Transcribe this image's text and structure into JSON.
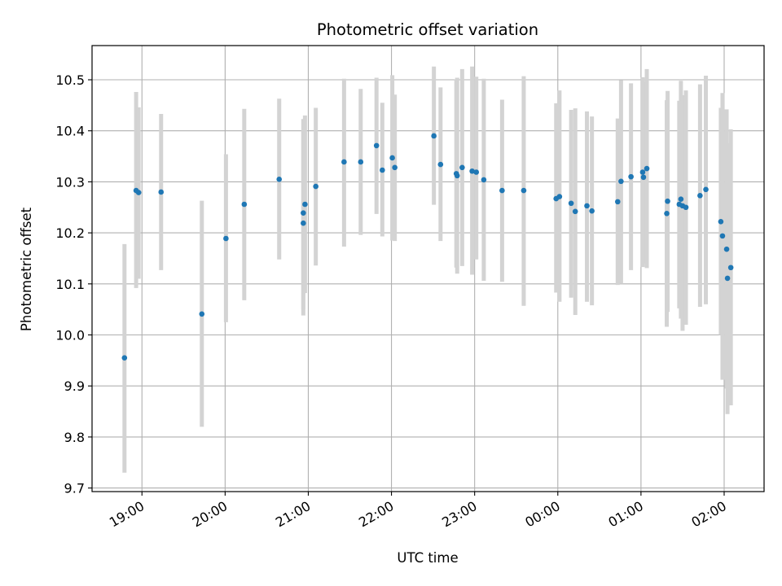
{
  "chart_data": {
    "type": "scatter",
    "title": "Photometric offset variation",
    "xlabel": "UTC time",
    "ylabel": "Photometric offset",
    "x_unit": "hours since 00:00 UTC (negative = previous day)",
    "xlim": [
      -5.6,
      2.48
    ],
    "ylim": [
      9.693,
      10.567
    ],
    "grid": true,
    "x_ticks": [
      {
        "value": -5,
        "label": "19:00"
      },
      {
        "value": -4,
        "label": "20:00"
      },
      {
        "value": -3,
        "label": "21:00"
      },
      {
        "value": -2,
        "label": "22:00"
      },
      {
        "value": -1,
        "label": "23:00"
      },
      {
        "value": 0,
        "label": "00:00"
      },
      {
        "value": 1,
        "label": "01:00"
      },
      {
        "value": 2,
        "label": "02:00"
      }
    ],
    "y_ticks": [
      {
        "value": 9.7,
        "label": "9.7"
      },
      {
        "value": 9.8,
        "label": "9.8"
      },
      {
        "value": 9.9,
        "label": "9.9"
      },
      {
        "value": 10.0,
        "label": "10.0"
      },
      {
        "value": 10.1,
        "label": "10.1"
      },
      {
        "value": 10.2,
        "label": "10.2"
      },
      {
        "value": 10.3,
        "label": "10.3"
      },
      {
        "value": 10.4,
        "label": "10.4"
      },
      {
        "value": 10.5,
        "label": "10.5"
      }
    ],
    "colors": {
      "points": "#1f77b4",
      "errorbars": "#d3d3d3",
      "grid": "#b0b0b0"
    },
    "points": [
      {
        "x": -5.21,
        "y": 9.955,
        "lo": 9.73,
        "hi": 10.178
      },
      {
        "x": -5.07,
        "y": 10.283,
        "lo": 10.092,
        "hi": 10.476
      },
      {
        "x": -5.04,
        "y": 10.279,
        "lo": 10.11,
        "hi": 10.446
      },
      {
        "x": -4.77,
        "y": 10.28,
        "lo": 10.127,
        "hi": 10.433
      },
      {
        "x": -4.28,
        "y": 10.041,
        "lo": 9.82,
        "hi": 10.263
      },
      {
        "x": -3.99,
        "y": 10.189,
        "lo": 10.025,
        "hi": 10.354
      },
      {
        "x": -3.77,
        "y": 10.256,
        "lo": 10.068,
        "hi": 10.443
      },
      {
        "x": -3.35,
        "y": 10.305,
        "lo": 10.148,
        "hi": 10.463
      },
      {
        "x": -3.06,
        "y": 10.239,
        "lo": 10.05,
        "hi": 10.423
      },
      {
        "x": -3.06,
        "y": 10.219,
        "lo": 10.038,
        "hi": 10.4
      },
      {
        "x": -3.04,
        "y": 10.256,
        "lo": 10.082,
        "hi": 10.43
      },
      {
        "x": -2.91,
        "y": 10.291,
        "lo": 10.136,
        "hi": 10.445
      },
      {
        "x": -2.57,
        "y": 10.339,
        "lo": 10.173,
        "hi": 10.502
      },
      {
        "x": -2.37,
        "y": 10.339,
        "lo": 10.196,
        "hi": 10.482
      },
      {
        "x": -2.18,
        "y": 10.371,
        "lo": 10.237,
        "hi": 10.504
      },
      {
        "x": -2.11,
        "y": 10.323,
        "lo": 10.193,
        "hi": 10.455
      },
      {
        "x": -1.99,
        "y": 10.347,
        "lo": 10.185,
        "hi": 10.509
      },
      {
        "x": -1.96,
        "y": 10.328,
        "lo": 10.184,
        "hi": 10.471
      },
      {
        "x": -1.49,
        "y": 10.39,
        "lo": 10.255,
        "hi": 10.526
      },
      {
        "x": -1.41,
        "y": 10.334,
        "lo": 10.184,
        "hi": 10.485
      },
      {
        "x": -1.22,
        "y": 10.316,
        "lo": 10.132,
        "hi": 10.501
      },
      {
        "x": -1.21,
        "y": 10.312,
        "lo": 10.12,
        "hi": 10.504
      },
      {
        "x": -1.15,
        "y": 10.328,
        "lo": 10.135,
        "hi": 10.521
      },
      {
        "x": -1.03,
        "y": 10.321,
        "lo": 10.118,
        "hi": 10.526
      },
      {
        "x": -0.98,
        "y": 10.319,
        "lo": 10.148,
        "hi": 10.506
      },
      {
        "x": -0.89,
        "y": 10.304,
        "lo": 10.106,
        "hi": 10.502
      },
      {
        "x": -0.67,
        "y": 10.283,
        "lo": 10.104,
        "hi": 10.461
      },
      {
        "x": -0.41,
        "y": 10.283,
        "lo": 10.057,
        "hi": 10.507
      },
      {
        "x": -0.02,
        "y": 10.267,
        "lo": 10.083,
        "hi": 10.454
      },
      {
        "x": 0.02,
        "y": 10.271,
        "lo": 10.065,
        "hi": 10.479
      },
      {
        "x": 0.16,
        "y": 10.258,
        "lo": 10.073,
        "hi": 10.441
      },
      {
        "x": 0.21,
        "y": 10.242,
        "lo": 10.039,
        "hi": 10.444
      },
      {
        "x": 0.35,
        "y": 10.253,
        "lo": 10.065,
        "hi": 10.438
      },
      {
        "x": 0.41,
        "y": 10.243,
        "lo": 10.058,
        "hi": 10.428
      },
      {
        "x": 0.72,
        "y": 10.261,
        "lo": 10.098,
        "hi": 10.424
      },
      {
        "x": 0.76,
        "y": 10.301,
        "lo": 10.1,
        "hi": 10.499
      },
      {
        "x": 0.88,
        "y": 10.31,
        "lo": 10.127,
        "hi": 10.493
      },
      {
        "x": 1.02,
        "y": 10.319,
        "lo": 10.133,
        "hi": 10.505
      },
      {
        "x": 1.03,
        "y": 10.309,
        "lo": 10.14,
        "hi": 10.496
      },
      {
        "x": 1.07,
        "y": 10.326,
        "lo": 10.131,
        "hi": 10.521
      },
      {
        "x": 1.31,
        "y": 10.238,
        "lo": 10.016,
        "hi": 10.46
      },
      {
        "x": 1.32,
        "y": 10.262,
        "lo": 10.045,
        "hi": 10.478
      },
      {
        "x": 1.46,
        "y": 10.256,
        "lo": 10.052,
        "hi": 10.459
      },
      {
        "x": 1.48,
        "y": 10.266,
        "lo": 10.032,
        "hi": 10.498
      },
      {
        "x": 1.5,
        "y": 10.253,
        "lo": 10.008,
        "hi": 10.47
      },
      {
        "x": 1.54,
        "y": 10.25,
        "lo": 10.02,
        "hi": 10.479
      },
      {
        "x": 1.71,
        "y": 10.273,
        "lo": 10.055,
        "hi": 10.491
      },
      {
        "x": 1.78,
        "y": 10.285,
        "lo": 10.06,
        "hi": 10.508
      },
      {
        "x": 1.96,
        "y": 10.222,
        "lo": 10.0,
        "hi": 10.445
      },
      {
        "x": 1.98,
        "y": 10.194,
        "lo": 9.912,
        "hi": 10.474
      },
      {
        "x": 2.03,
        "y": 10.168,
        "lo": 9.895,
        "hi": 10.442
      },
      {
        "x": 2.04,
        "y": 10.111,
        "lo": 9.845,
        "hi": 10.376
      },
      {
        "x": 2.08,
        "y": 10.132,
        "lo": 9.862,
        "hi": 10.403
      }
    ]
  }
}
